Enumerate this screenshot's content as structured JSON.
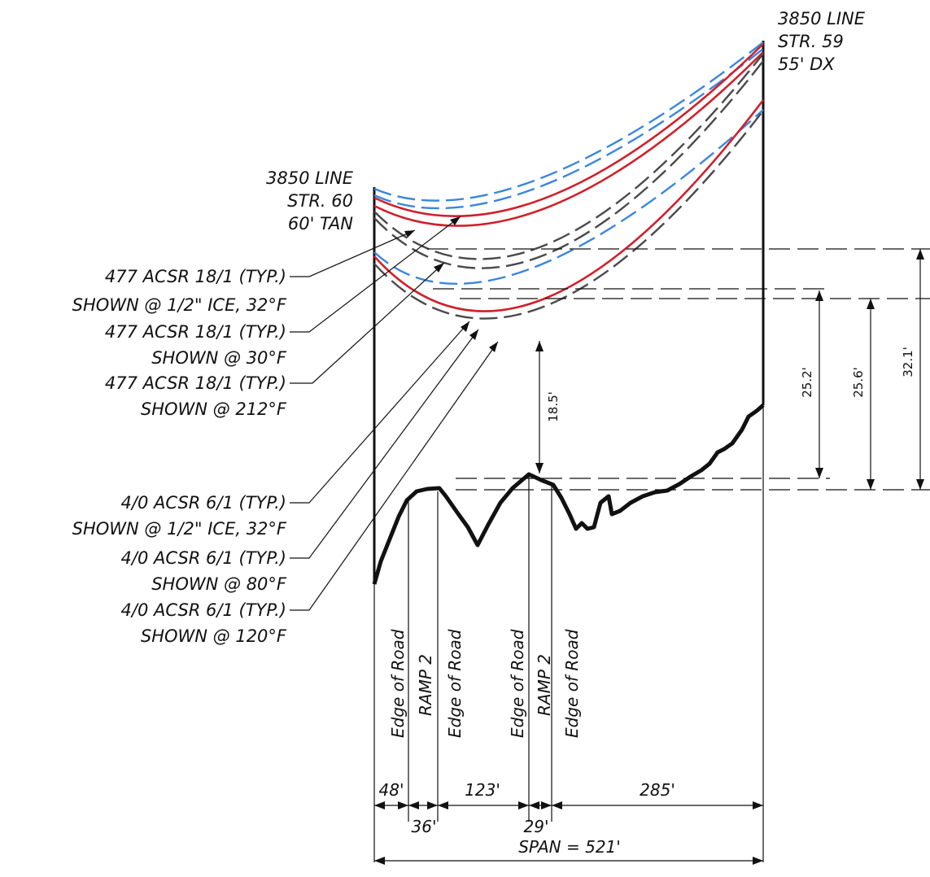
{
  "structures": {
    "right": [
      "3850 LINE",
      "STR. 59",
      "55' DX"
    ],
    "left": [
      "3850 LINE",
      "STR. 60",
      "60' TAN"
    ]
  },
  "callouts": [
    {
      "line1": "477 ACSR 18/1 (TYP.)",
      "line2": "SHOWN @ 1/2\" ICE, 32°F"
    },
    {
      "line1": "477 ACSR 18/1 (TYP.)",
      "line2": "SHOWN @ 30°F"
    },
    {
      "line1": "477 ACSR 18/1 (TYP.)",
      "line2": "SHOWN @ 212°F"
    },
    {
      "line1": "4/0 ACSR 6/1 (TYP.)",
      "line2": "SHOWN @ 1/2\" ICE, 32°F"
    },
    {
      "line1": "4/0 ACSR 6/1 (TYP.)",
      "line2": "SHOWN @ 80°F"
    },
    {
      "line1": "4/0 ACSR 6/1 (TYP.)",
      "line2": "SHOWN @ 120°F"
    }
  ],
  "clearances": {
    "min": "18.5'",
    "c1": "25.2'",
    "c2": "25.6'",
    "c3": "32.1'"
  },
  "road_labels": [
    "Edge of Road",
    "RAMP 2",
    "Edge of Road",
    "Edge of Road",
    "RAMP 2",
    "Edge of Road"
  ],
  "segments": {
    "s1": "48'",
    "s2": "36'",
    "s3": "123'",
    "s4": "29'",
    "s5": "285'"
  },
  "span": "SPAN = 521'",
  "colors": {
    "conductor_477": "#d0202a",
    "conductor_ice": "#3a86e0",
    "conductor_4_0": "#4a4a4a"
  }
}
